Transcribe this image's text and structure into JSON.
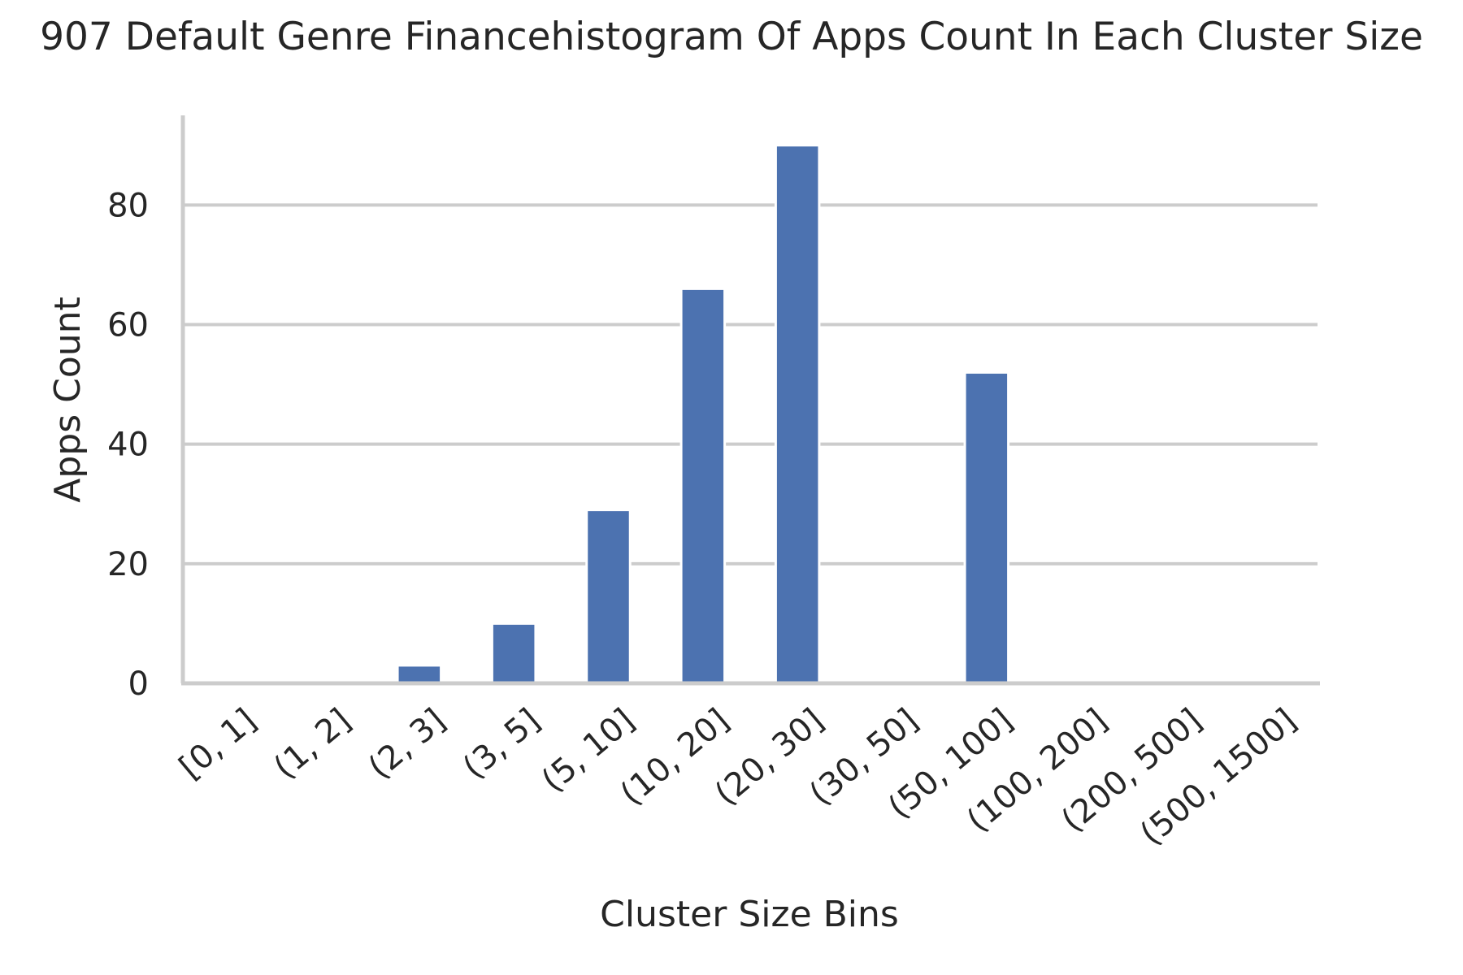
{
  "chart_data": {
    "type": "bar",
    "title": "907 Default Genre Financehistogram Of Apps Count In Each Cluster Size",
    "xlabel": "Cluster Size Bins",
    "ylabel": "Apps Count",
    "categories": [
      "[0, 1]",
      "(1, 2]",
      "(2, 3]",
      "(3, 5]",
      "(5, 10]",
      "(10, 20]",
      "(20, 30]",
      "(30, 50]",
      "(50, 100]",
      "(100, 200]",
      "(200, 500]",
      "(500, 1500]"
    ],
    "values": [
      0,
      0,
      3,
      10,
      29,
      66,
      90,
      0,
      52,
      0,
      0,
      0
    ],
    "ylim": [
      0,
      95
    ],
    "yticks": [
      0,
      20,
      40,
      60,
      80
    ],
    "grid": "horizontal",
    "bar_color": "#4c72b0",
    "grid_color": "#cccccc",
    "spine_color": "#cccccc"
  }
}
